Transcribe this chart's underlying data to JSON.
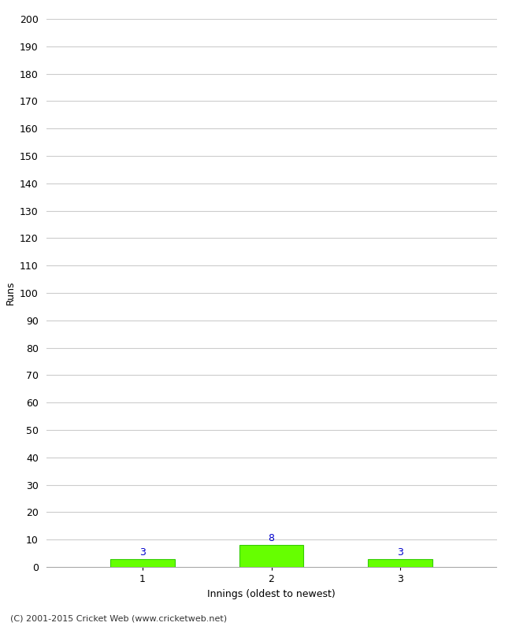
{
  "xlabel": "Innings (oldest to newest)",
  "ylabel": "Runs",
  "categories": [
    1,
    2,
    3
  ],
  "values": [
    3,
    8,
    3
  ],
  "bar_color": "#66ff00",
  "bar_edge_color": "#33cc00",
  "value_labels": [
    3,
    8,
    3
  ],
  "value_label_color": "#0000cc",
  "ylim": [
    0,
    200
  ],
  "ytick_step": 10,
  "background_color": "#ffffff",
  "grid_color": "#cccccc",
  "footer_text": "(C) 2001-2015 Cricket Web (www.cricketweb.net)"
}
